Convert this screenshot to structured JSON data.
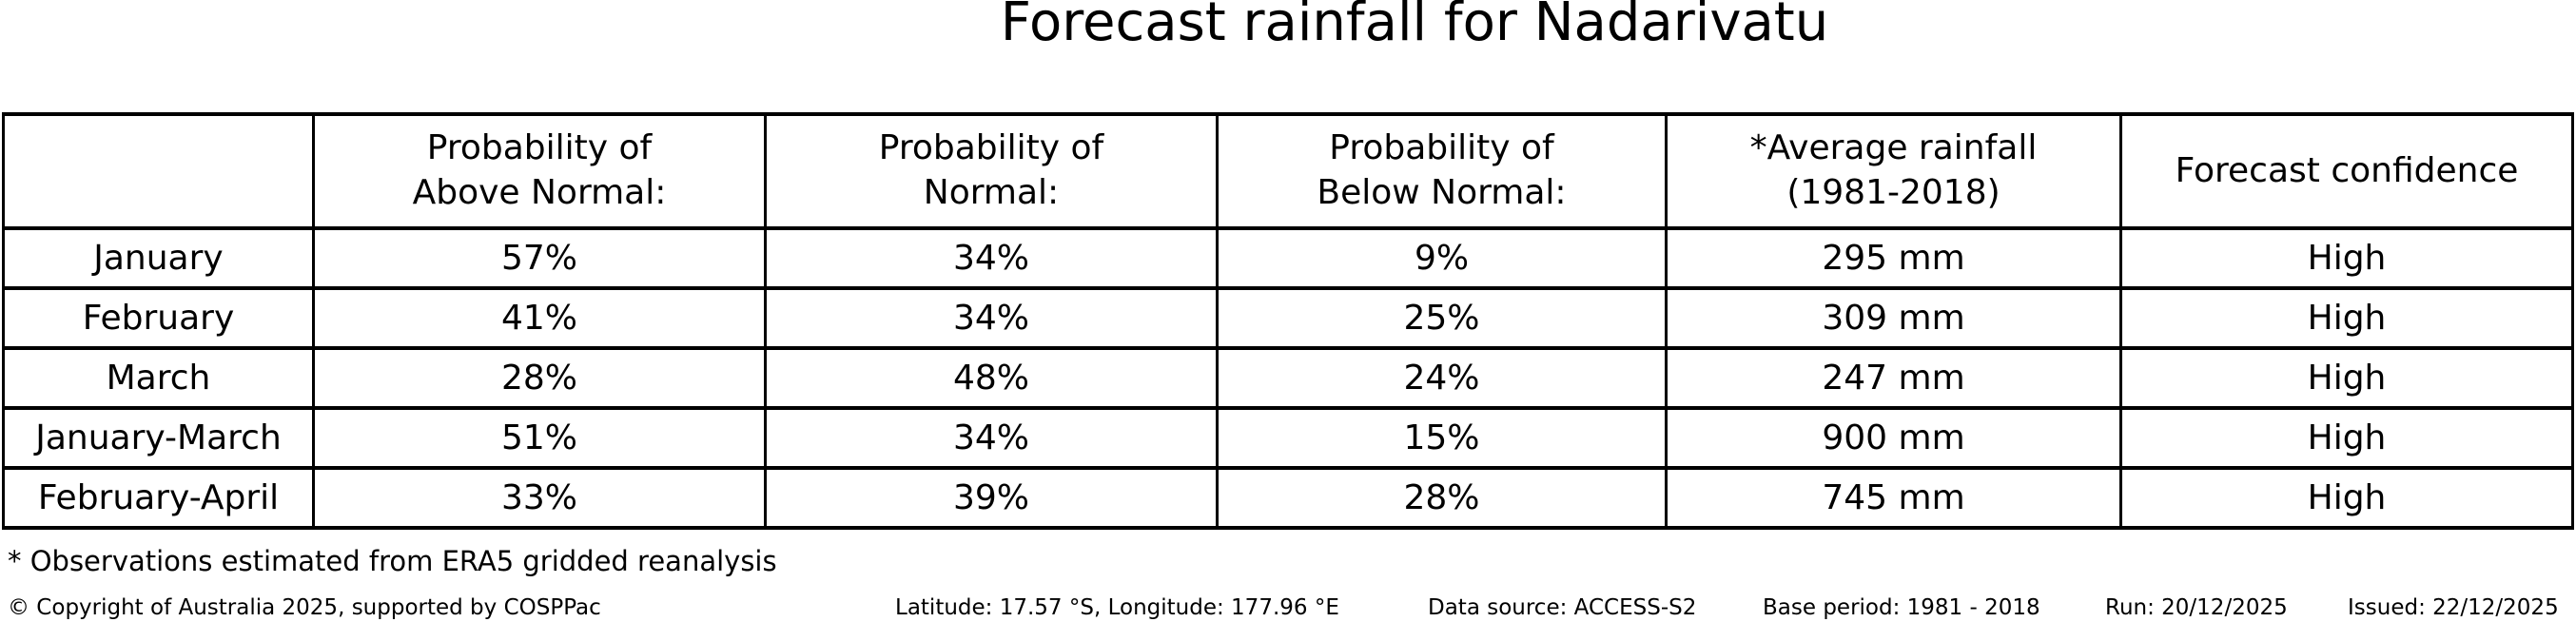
{
  "title": "Forecast rainfall for Nadarivatu",
  "chart_data": {
    "type": "table",
    "title": "Forecast rainfall for Nadarivatu",
    "columns": [
      "Probability of Above Normal:",
      "Probability of Normal:",
      "Probability of Below Normal:",
      "*Average rainfall (1981-2018)",
      "Forecast confidence"
    ],
    "rows": [
      {
        "period": "January",
        "above_normal_pct": 57,
        "normal_pct": 34,
        "below_normal_pct": 9,
        "average_rainfall_mm": 295,
        "forecast_confidence": "High"
      },
      {
        "period": "February",
        "above_normal_pct": 41,
        "normal_pct": 34,
        "below_normal_pct": 25,
        "average_rainfall_mm": 309,
        "forecast_confidence": "High"
      },
      {
        "period": "March",
        "above_normal_pct": 28,
        "normal_pct": 48,
        "below_normal_pct": 24,
        "average_rainfall_mm": 247,
        "forecast_confidence": "High"
      },
      {
        "period": "January-March",
        "above_normal_pct": 51,
        "normal_pct": 34,
        "below_normal_pct": 15,
        "average_rainfall_mm": 900,
        "forecast_confidence": "High"
      },
      {
        "period": "February-April",
        "above_normal_pct": 33,
        "normal_pct": 39,
        "below_normal_pct": 28,
        "average_rainfall_mm": 745,
        "forecast_confidence": "High"
      }
    ],
    "footnote": "* Observations estimated from ERA5 gridded reanalysis"
  },
  "table": {
    "header": [
      {
        "line1": "Probability of",
        "line2": "Above Normal:"
      },
      {
        "line1": "Probability of",
        "line2": "Normal:"
      },
      {
        "line1": "Probability of",
        "line2": "Below Normal:"
      },
      {
        "line1": "*Average rainfall",
        "line2": "(1981-2018)"
      },
      {
        "line1": "Forecast confidence",
        "line2": ""
      }
    ],
    "rows": [
      {
        "label": "January",
        "cells": [
          "57%",
          "34%",
          "9%",
          "295 mm",
          "High"
        ]
      },
      {
        "label": "February",
        "cells": [
          "41%",
          "34%",
          "25%",
          "309 mm",
          "High"
        ]
      },
      {
        "label": "March",
        "cells": [
          "28%",
          "48%",
          "24%",
          "247 mm",
          "High"
        ]
      },
      {
        "label": "January-March",
        "cells": [
          "51%",
          "34%",
          "15%",
          "900 mm",
          "High"
        ]
      },
      {
        "label": "February-April",
        "cells": [
          "33%",
          "39%",
          "28%",
          "745 mm",
          "High"
        ]
      }
    ]
  },
  "footnote": "* Observations estimated from ERA5 gridded reanalysis",
  "footer": {
    "copyright": "© Copyright of Australia 2025, supported by COSPPac",
    "location": "Latitude: 17.57 °S, Longitude: 177.96 °E",
    "data_source": "Data source: ACCESS-S2",
    "base_period": "Base period: 1981 - 2018",
    "run": "Run: 20/12/2025",
    "issued": "Issued: 22/12/2025"
  },
  "colors": {
    "background": "#ffffff",
    "text": "#000000",
    "border": "#000000"
  }
}
